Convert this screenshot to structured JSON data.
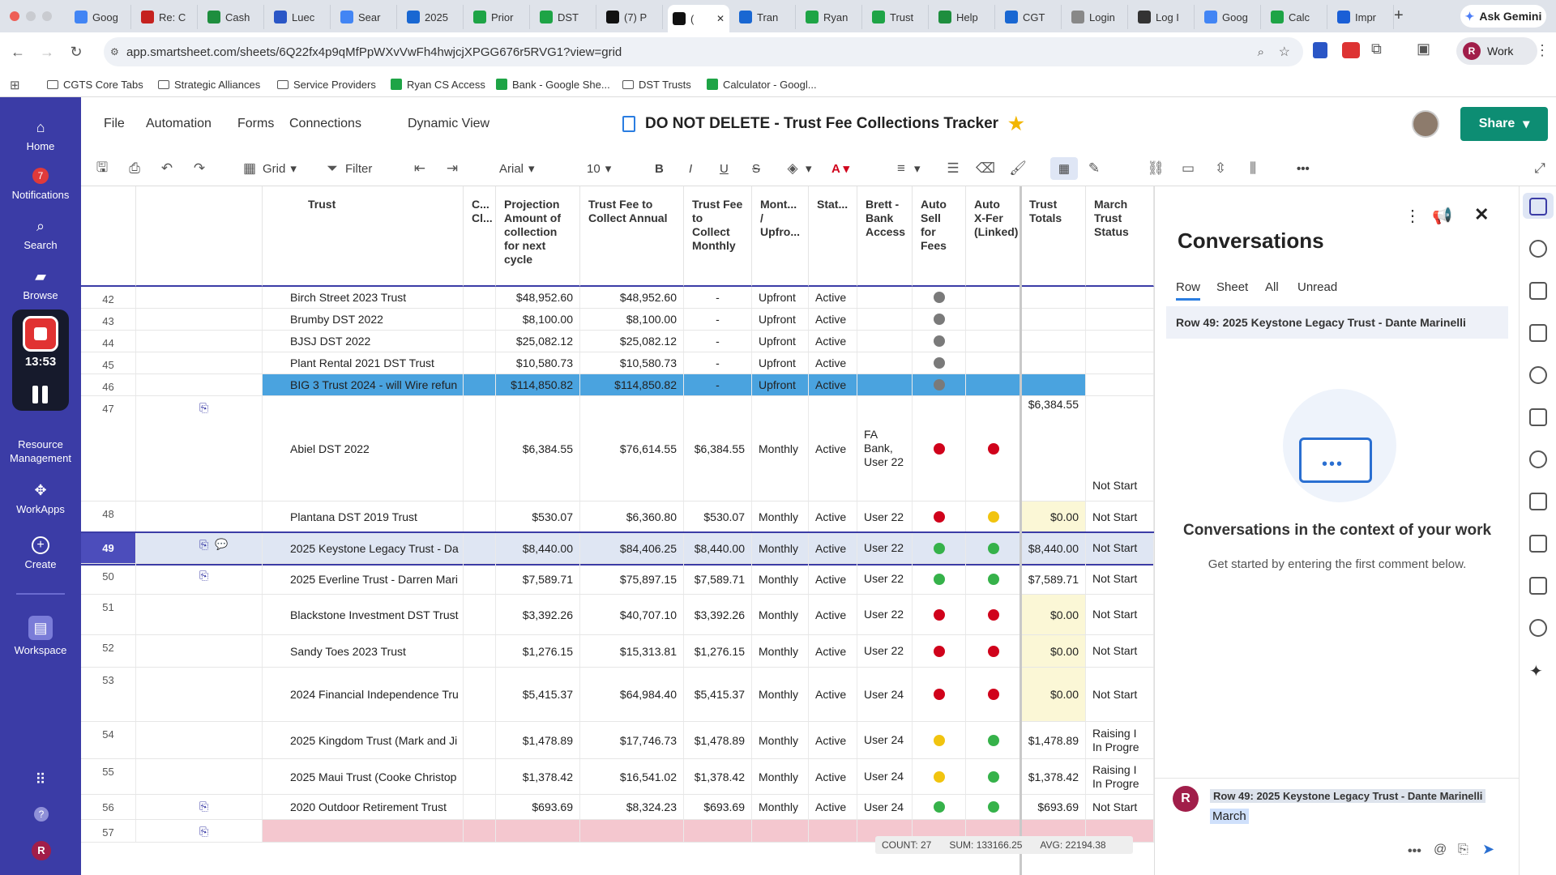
{
  "browser": {
    "tabs": [
      "Goog",
      "Re: C",
      "Cash",
      "Luec",
      "Sear",
      "2025",
      "Prior",
      "DST",
      "(7) P",
      "(",
      "Tran",
      "Ryan",
      "Trust",
      "Help",
      "CGT",
      "Login",
      "Log I",
      "Goog",
      "Calc",
      "Impr"
    ],
    "active_tab_index": 9,
    "gemini_label": "Ask Gemini",
    "url": "app.smartsheet.com/sheets/6Q22fx4p9qMfPpWXvVwFh4hwjcjXPGG676r5RVG1?view=grid",
    "profile_label": "Work",
    "profile_initial": "R",
    "bookmarks": [
      "CGTS Core Tabs",
      "Strategic Alliances",
      "Service Providers",
      "Ryan CS Access",
      "Bank - Google She...",
      "DST Trusts",
      "Calculator - Googl..."
    ]
  },
  "leftnav": {
    "home": "Home",
    "notifications": "Notifications",
    "notif_count": "7",
    "search": "Search",
    "browse": "Browse",
    "rec_time": "13:53",
    "resource": "Resource Management",
    "workapps": "WorkApps",
    "create": "Create",
    "workspace": "Workspace",
    "user_initial": "R"
  },
  "header": {
    "menus": [
      "File",
      "Automation",
      "Forms",
      "Connections",
      "Dynamic View"
    ],
    "title": "DO NOT DELETE - Trust Fee Collections Tracker",
    "share_label": "Share"
  },
  "toolbar": {
    "view": "Grid",
    "filter": "Filter",
    "font": "Arial",
    "size": "10"
  },
  "grid": {
    "columns": [
      "Trust",
      "C... Cl...",
      "Projection Amount of collection for next cycle",
      "Trust Fee to Collect Annual",
      "Trust Fee to Collect Monthly",
      "Mont... / Upfro...",
      "Stat...",
      "Brett - Bank Access",
      "Auto Sell for Fees",
      "Auto X-Fer (Linked)",
      "Trust Totals",
      "March Trust Status"
    ],
    "rows": [
      {
        "num": "42",
        "trust": "Birch Street 2023 Trust",
        "proj": "$48,952.60",
        "annual": "$48,952.60",
        "monthly": "-",
        "freq": "Upfront",
        "status": "Active",
        "bank": "",
        "autosell": "grey",
        "autoxfer": "",
        "totals": "",
        "march": "",
        "clip": false
      },
      {
        "num": "43",
        "trust": "Brumby DST 2022",
        "proj": "$8,100.00",
        "annual": "$8,100.00",
        "monthly": "-",
        "freq": "Upfront",
        "status": "Active",
        "bank": "",
        "autosell": "grey",
        "autoxfer": "",
        "totals": "",
        "march": "",
        "clip": false
      },
      {
        "num": "44",
        "trust": "BJSJ DST 2022",
        "proj": "$25,082.12",
        "annual": "$25,082.12",
        "monthly": "-",
        "freq": "Upfront",
        "status": "Active",
        "bank": "",
        "autosell": "grey",
        "autoxfer": "",
        "totals": "",
        "march": "",
        "clip": false
      },
      {
        "num": "45",
        "trust": "Plant Rental 2021 DST Trust",
        "proj": "$10,580.73",
        "annual": "$10,580.73",
        "monthly": "-",
        "freq": "Upfront",
        "status": "Active",
        "bank": "",
        "autosell": "grey",
        "autoxfer": "",
        "totals": "",
        "march": "",
        "clip": false
      },
      {
        "num": "46",
        "trust": "BIG 3 Trust 2024 - will Wire refun",
        "proj": "$114,850.82",
        "annual": "$114,850.82",
        "monthly": "-",
        "freq": "Upfront",
        "status": "Active",
        "bank": "",
        "autosell": "grey",
        "autoxfer": "",
        "totals": "",
        "march": "",
        "clip": false
      },
      {
        "num": "47",
        "trust": "Abiel DST 2022",
        "proj": "$6,384.55",
        "annual": "$76,614.55",
        "monthly": "$6,384.55",
        "freq": "Monthly",
        "status": "Active",
        "bank": "FA Bank, User 22",
        "autosell": "red",
        "autoxfer": "red",
        "totals": "$6,384.55",
        "march": "Not Start",
        "clip": true
      },
      {
        "num": "48",
        "trust": "Plantana DST 2019 Trust",
        "proj": "$530.07",
        "annual": "$6,360.80",
        "monthly": "$530.07",
        "freq": "Monthly",
        "status": "Active",
        "bank": "User 22",
        "autosell": "red",
        "autoxfer": "yellow",
        "totals": "$0.00",
        "march": "Not Start",
        "clip": false
      },
      {
        "num": "49",
        "trust": "2025 Keystone Legacy Trust - Da",
        "proj": "$8,440.00",
        "annual": "$84,406.25",
        "monthly": "$8,440.00",
        "freq": "Monthly",
        "status": "Active",
        "bank": "User 22",
        "autosell": "green",
        "autoxfer": "green",
        "totals": "$8,440.00",
        "march": "Not Start",
        "clip": true
      },
      {
        "num": "50",
        "trust": "2025 Everline Trust - Darren Mari",
        "proj": "$7,589.71",
        "annual": "$75,897.15",
        "monthly": "$7,589.71",
        "freq": "Monthly",
        "status": "Active",
        "bank": "User 22",
        "autosell": "green",
        "autoxfer": "green",
        "totals": "$7,589.71",
        "march": "Not Start",
        "clip": true
      },
      {
        "num": "51",
        "trust": "Blackstone Investment DST Trust",
        "proj": "$3,392.26",
        "annual": "$40,707.10",
        "monthly": "$3,392.26",
        "freq": "Monthly",
        "status": "Active",
        "bank": "User 22",
        "autosell": "red",
        "autoxfer": "red",
        "totals": "$0.00",
        "march": "Not Start",
        "clip": false
      },
      {
        "num": "52",
        "trust": "Sandy Toes 2023 Trust",
        "proj": "$1,276.15",
        "annual": "$15,313.81",
        "monthly": "$1,276.15",
        "freq": "Monthly",
        "status": "Active",
        "bank": "User 22",
        "autosell": "red",
        "autoxfer": "red",
        "totals": "$0.00",
        "march": "Not Start",
        "clip": false
      },
      {
        "num": "53",
        "trust": "2024 Financial Independence Tru",
        "proj": "$5,415.37",
        "annual": "$64,984.40",
        "monthly": "$5,415.37",
        "freq": "Monthly",
        "status": "Active",
        "bank": "User 24",
        "autosell": "red",
        "autoxfer": "red",
        "totals": "$0.00",
        "march": "Not Start",
        "clip": false
      },
      {
        "num": "54",
        "trust": "2025 Kingdom Trust (Mark and Ji",
        "proj": "$1,478.89",
        "annual": "$17,746.73",
        "monthly": "$1,478.89",
        "freq": "Monthly",
        "status": "Active",
        "bank": "User 24",
        "autosell": "yellow",
        "autoxfer": "green",
        "totals": "$1,478.89",
        "march": "Raising I In Progre",
        "clip": false
      },
      {
        "num": "55",
        "trust": "2025 Maui Trust (Cooke Christop",
        "proj": "$1,378.42",
        "annual": "$16,541.02",
        "monthly": "$1,378.42",
        "freq": "Monthly",
        "status": "Active",
        "bank": "User 24",
        "autosell": "yellow",
        "autoxfer": "green",
        "totals": "$1,378.42",
        "march": "Raising I In Progre",
        "clip": false
      },
      {
        "num": "56",
        "trust": "2020 Outdoor Retirement Trust",
        "proj": "$693.69",
        "annual": "$8,324.23",
        "monthly": "$693.69",
        "freq": "Monthly",
        "status": "Active",
        "bank": "User 24",
        "autosell": "green",
        "autoxfer": "green",
        "totals": "$693.69",
        "march": "Not Start",
        "clip": true
      },
      {
        "num": "57",
        "trust": "",
        "proj": "",
        "annual": "",
        "monthly": "",
        "freq": "",
        "status": "",
        "bank": "",
        "autosell": "",
        "autoxfer": "",
        "totals": "",
        "march": "",
        "clip": true
      }
    ],
    "summary": {
      "count": "COUNT: 27",
      "sum": "SUM: 133166.25",
      "avg": "AVG: 22194.38"
    }
  },
  "conversations": {
    "title": "Conversations",
    "tabs": [
      "Row",
      "Sheet",
      "All",
      "Unread"
    ],
    "row_ref": "Row 49: 2025 Keystone Legacy Trust - Dante Marinelli",
    "empty_title": "Conversations in the context of your work",
    "empty_sub": "Get started by entering the first comment below.",
    "composer_ref": "Row 49: 2025 Keystone Legacy Trust - Dante Marinelli",
    "composer_text": "March",
    "composer_initial": "R"
  },
  "colors": {
    "nav": "#3b3ca6",
    "share": "#0d8d73",
    "selected": "#4aa3df",
    "red": "#d0021b",
    "green": "#36b24a",
    "yellow": "#f1c40f",
    "grey": "#7a7a7a",
    "pink": "#f4c7cf"
  }
}
